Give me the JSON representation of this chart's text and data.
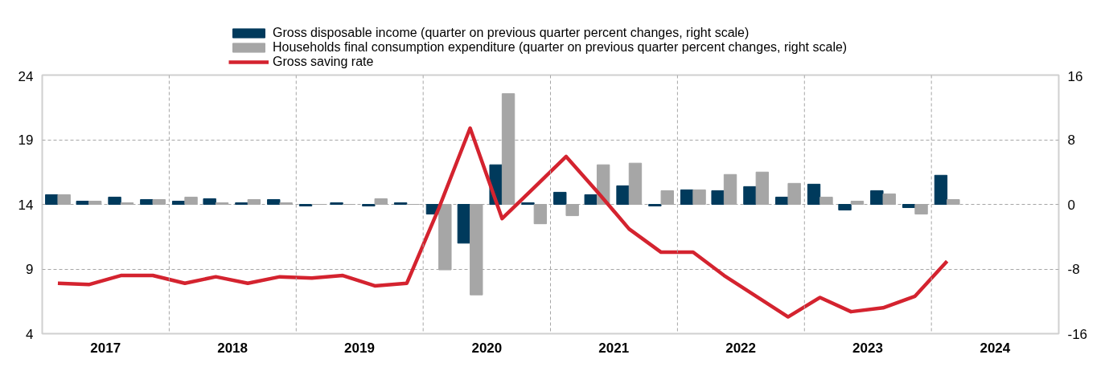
{
  "chart_data": {
    "type": "bar",
    "x": [
      "2017-02-15",
      "2017-05-15",
      "2017-08-15",
      "2017-11-15",
      "2018-02-15",
      "2018-05-15",
      "2018-08-15",
      "2018-11-15",
      "2019-02-15",
      "2019-05-15",
      "2019-08-15",
      "2019-11-15",
      "2020-02-15",
      "2020-05-15",
      "2020-08-15",
      "2020-11-15",
      "2021-02-15",
      "2021-05-15",
      "2021-08-15",
      "2021-11-15",
      "2022-02-15",
      "2022-05-15",
      "2022-08-15",
      "2022-11-15",
      "2023-02-15",
      "2023-05-15",
      "2023-08-15",
      "2023-11-15",
      "2024-02-15"
    ],
    "series": [
      {
        "name": "Gross disposable income (quarter on previous quarter percent changes, right scale)",
        "axis": "y2",
        "color": "#003a5c",
        "values": [
          1.2,
          0.4,
          0.9,
          0.6,
          0.4,
          0.7,
          0.2,
          0.6,
          -0.2,
          0.2,
          -0.2,
          0.2,
          -1.2,
          -4.8,
          4.9,
          0.2,
          1.5,
          1.2,
          2.3,
          -0.2,
          1.8,
          1.7,
          2.2,
          0.9,
          2.5,
          -0.7,
          1.7,
          -0.4,
          3.6
        ]
      },
      {
        "name": "Households final consumption expenditure (quarter on previous quarter percent changes, right scale)",
        "axis": "y2",
        "color": "#a6a6a6",
        "values": [
          1.2,
          0.4,
          0.2,
          0.6,
          0.9,
          0.2,
          0.6,
          0.2,
          0,
          0,
          0.7,
          0,
          -8.1,
          -11.2,
          13.7,
          -2.4,
          -1.4,
          4.9,
          5.1,
          1.7,
          1.8,
          3.7,
          4.0,
          2.6,
          0.9,
          0.4,
          1.3,
          -1.2,
          0.6
        ]
      },
      {
        "name": "Gross saving rate",
        "type": "line",
        "color": "#d4232f",
        "values": [
          7.9,
          7.8,
          8.5,
          8.5,
          7.9,
          8.4,
          7.9,
          8.4,
          8.3,
          8.5,
          7.7,
          7.9,
          13.7,
          19.9,
          12.9,
          15.3,
          17.7,
          15.0,
          12.1,
          10.3,
          10.3,
          8.5,
          6.9,
          5.3,
          6.8,
          5.7,
          6.0,
          6.9,
          9.6
        ]
      }
    ],
    "xlim": [
      "2017-01-01",
      "2025-01-01"
    ],
    "xticks": [
      {
        "value": "2017-01-01",
        "label": null
      },
      {
        "value": "2017-07-02",
        "label": "2017"
      },
      {
        "value": "2018-01-01",
        "label": null
      },
      {
        "value": "2018-07-02",
        "label": "2018"
      },
      {
        "value": "2019-01-01",
        "label": null
      },
      {
        "value": "2019-07-02",
        "label": "2019"
      },
      {
        "value": "2020-01-01",
        "label": null
      },
      {
        "value": "2020-07-02",
        "label": "2020"
      },
      {
        "value": "2021-01-01",
        "label": null
      },
      {
        "value": "2021-07-02",
        "label": "2021"
      },
      {
        "value": "2022-01-01",
        "label": null
      },
      {
        "value": "2022-07-02",
        "label": "2022"
      },
      {
        "value": "2023-01-01",
        "label": null
      },
      {
        "value": "2023-07-02",
        "label": "2023"
      },
      {
        "value": "2024-01-01",
        "label": null
      },
      {
        "value": "2024-07-02",
        "label": "2024"
      },
      {
        "value": "2025-01-01",
        "label": null
      }
    ],
    "ylim": [
      4,
      24
    ],
    "yticks": [
      4,
      9,
      14,
      19,
      24
    ],
    "y2lim": [
      -16,
      16
    ],
    "y2ticks": [
      -16,
      -8,
      0,
      8,
      16
    ],
    "grid": true,
    "legend": "top"
  }
}
